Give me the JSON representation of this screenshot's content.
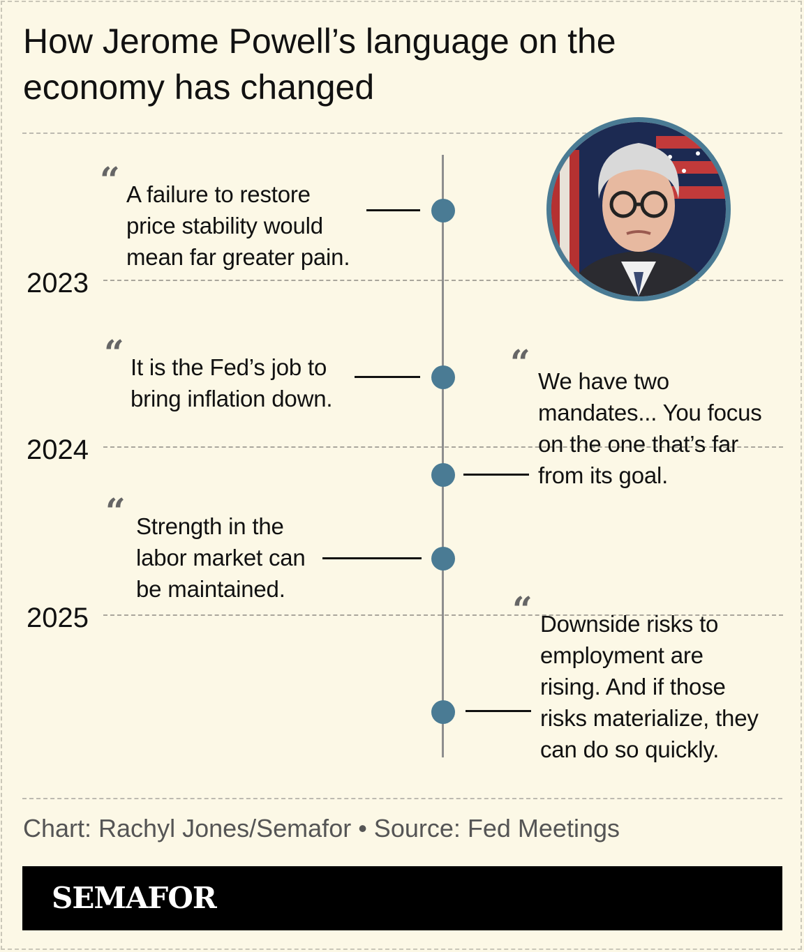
{
  "title": "How Jerome Powell’s language on the economy has changed",
  "years": [
    "2023",
    "2024",
    "2025"
  ],
  "quote_mark": "“",
  "quotes": [
    {
      "year": "2023",
      "text": "A failure to restore\nprice stability would\nmean far greater pain."
    },
    {
      "year": "2024",
      "text": "It is the Fed’s job to\nbring inflation down."
    },
    {
      "year": "2024",
      "text": "We have two\nmandates... You focus\non the one that’s far\nfrom its goal."
    },
    {
      "year": "2025",
      "text": "Strength in the\nlabor market can\nbe maintained."
    },
    {
      "year": "2025",
      "text": "Downside risks to\nemployment are\nrising. And if those\nrisks materialize, they\ncan do so quickly."
    }
  ],
  "credit": "Chart: Rachyl Jones/Semafor • Source: Fed Meetings",
  "brand": "SEMAFOR",
  "colors": {
    "background": "#fcf8e6",
    "dot": "#4a7b94",
    "portrait_ring": "#4a7b94",
    "spine": "#8e8e8e",
    "brand_bar": "#000000"
  },
  "portrait_icon": "person-portrait-icon"
}
